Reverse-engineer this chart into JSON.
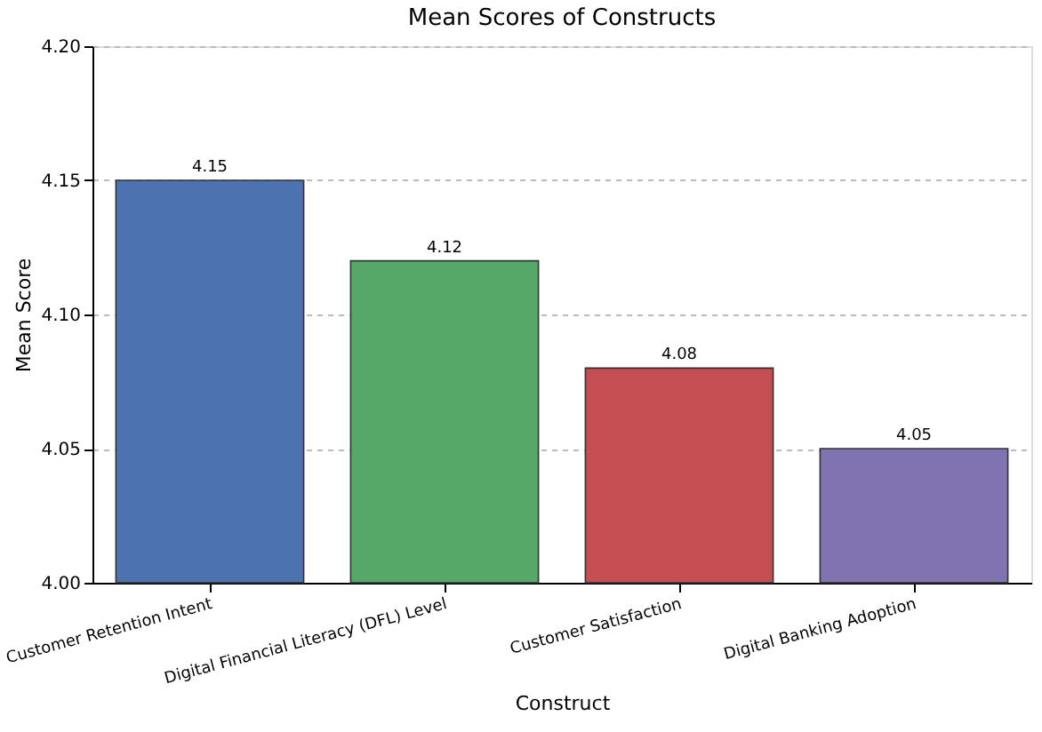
{
  "chart_data": {
    "type": "bar",
    "title": "Mean Scores of Constructs",
    "xlabel": "Construct",
    "ylabel": "Mean Score",
    "categories": [
      "Customer Retention Intent",
      "Digital Financial Literacy (DFL) Level",
      "Customer Satisfaction",
      "Digital Banking Adoption"
    ],
    "values": [
      4.15,
      4.12,
      4.08,
      4.05
    ],
    "colors": [
      "#4c72b0",
      "#55a868",
      "#c44e52",
      "#8172b2"
    ],
    "ylim": [
      4.0,
      4.2
    ],
    "yticks": [
      {
        "value": 4.0,
        "label": "4.00"
      },
      {
        "value": 4.05,
        "label": "4.05"
      },
      {
        "value": 4.1,
        "label": "4.10"
      },
      {
        "value": 4.15,
        "label": "4.15"
      },
      {
        "value": 4.2,
        "label": "4.20"
      }
    ],
    "grid": "y",
    "data_labels": true
  }
}
